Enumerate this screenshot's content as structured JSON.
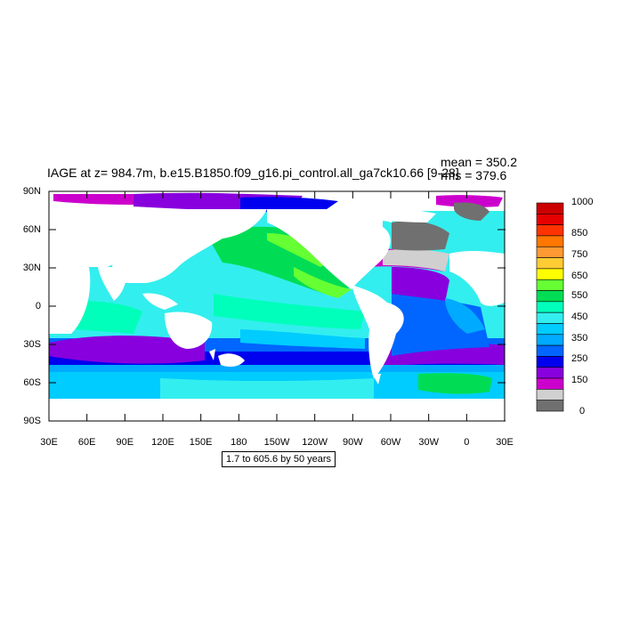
{
  "title": "IAGE at z= 984.7m, b.e15.B1850.f09_g16.pi_control.all_ga7ck10.66 [9-28]",
  "stats": {
    "mean": "mean = 350.2",
    "rms": "rms = 379.6"
  },
  "note": "1.7 to 605.6 by 50 years",
  "lat_labels": [
    "90N",
    "60N",
    "30N",
    "0",
    "30S",
    "60S",
    "90S"
  ],
  "lon_labels": [
    "30E",
    "60E",
    "90E",
    "120E",
    "150E",
    "180",
    "150W",
    "120W",
    "90W",
    "60W",
    "30W",
    "0",
    "30E"
  ],
  "colorbar": {
    "labels": [
      "1000",
      "850",
      "750",
      "650",
      "550",
      "450",
      "350",
      "250",
      "150",
      "0"
    ],
    "colors": [
      "#cc0000",
      "#e60000",
      "#ff3300",
      "#ff7700",
      "#ff9933",
      "#ffcc33",
      "#ffff00",
      "#66ff33",
      "#00dd55",
      "#00ffbb",
      "#33eeee",
      "#00ccff",
      "#00aaff",
      "#0066ff",
      "#0000ee",
      "#8800dd",
      "#cc00cc",
      "#d0d0d0",
      "#707070"
    ]
  },
  "map_colors": {
    "deep_purple": "#8800dd",
    "magenta": "#cc00cc",
    "navy": "#0000ee",
    "blue": "#0066ff",
    "cyan": "#33eeee",
    "aqua": "#00ffbb",
    "sky": "#00aaff",
    "sky2": "#00ccff",
    "green": "#00dd55",
    "lime": "#66ff33",
    "gray": "#707070",
    "lgray": "#d0d0d0",
    "land": "#ffffff"
  }
}
